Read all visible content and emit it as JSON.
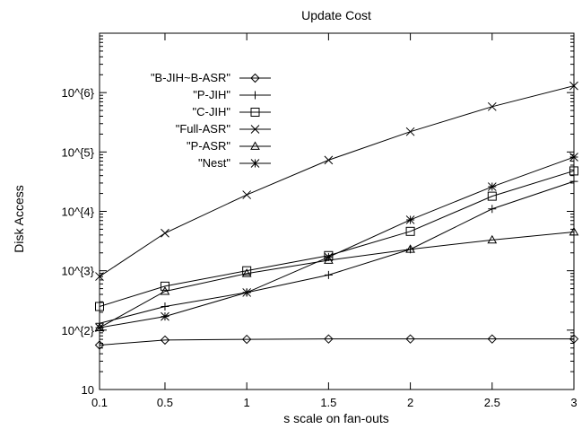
{
  "chart_data": {
    "type": "line",
    "title": "Update Cost",
    "xlabel": "s scale on fan-outs",
    "ylabel": "Disk Access",
    "y_scale": "log",
    "xlim": [
      0.1,
      3
    ],
    "ylim": [
      10,
      10000000
    ],
    "grid": false,
    "legend_position": "top-left",
    "x": [
      0.1,
      0.5,
      1,
      1.5,
      2,
      2.5,
      3
    ],
    "x_tick_labels": [
      "0.1",
      "0.5",
      "1",
      "1.5",
      "2",
      "2.5",
      "3"
    ],
    "y_ticks": [
      10,
      100,
      1000,
      10000,
      100000,
      1000000
    ],
    "y_tick_labels": [
      "10",
      "10^{2}",
      "10^{3}",
      "10^{4}",
      "10^{5}",
      "10^{6}"
    ],
    "series": [
      {
        "name": "\"B-JIH~B-ASR\"",
        "marker": "diamond",
        "values": [
          56,
          68,
          70,
          71,
          71,
          71,
          71
        ]
      },
      {
        "name": "\"P-JIH\"",
        "marker": "plus",
        "values": [
          130,
          250,
          430,
          850,
          2300,
          11000,
          32000
        ]
      },
      {
        "name": "\"C-JIH\"",
        "marker": "square",
        "values": [
          250,
          550,
          1000,
          1800,
          4600,
          18000,
          48000
        ]
      },
      {
        "name": "\"Full-ASR\"",
        "marker": "x",
        "values": [
          800,
          4300,
          19000,
          73000,
          220000,
          580000,
          1300000
        ]
      },
      {
        "name": "\"P-ASR\"",
        "marker": "triangle",
        "values": [
          110,
          450,
          900,
          1500,
          2300,
          3300,
          4500
        ]
      },
      {
        "name": "\"Nest\"",
        "marker": "star",
        "values": [
          110,
          170,
          430,
          1700,
          7200,
          26000,
          82000
        ]
      }
    ]
  }
}
